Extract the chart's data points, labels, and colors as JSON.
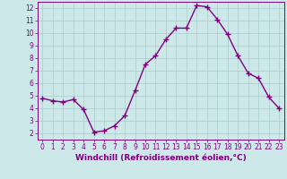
{
  "x": [
    0,
    1,
    2,
    3,
    4,
    5,
    6,
    7,
    8,
    9,
    10,
    11,
    12,
    13,
    14,
    15,
    16,
    17,
    18,
    19,
    20,
    21,
    22,
    23
  ],
  "y": [
    4.8,
    4.6,
    4.5,
    4.7,
    3.9,
    2.1,
    2.2,
    2.6,
    3.4,
    5.4,
    7.5,
    8.2,
    9.5,
    10.4,
    10.4,
    12.2,
    12.1,
    11.1,
    9.9,
    8.2,
    6.8,
    6.4,
    4.9,
    4.0
  ],
  "line_color": "#800080",
  "marker": "+",
  "marker_size": 4,
  "marker_lw": 1.0,
  "line_width": 1.0,
  "bg_color": "#cce8e8",
  "grid_color": "#aacccc",
  "xlabel": "Windchill (Refroidissement éolien,°C)",
  "xlim": [
    -0.5,
    23.5
  ],
  "ylim": [
    1.5,
    12.5
  ],
  "yticks": [
    2,
    3,
    4,
    5,
    6,
    7,
    8,
    9,
    10,
    11,
    12
  ],
  "xticks": [
    0,
    1,
    2,
    3,
    4,
    5,
    6,
    7,
    8,
    9,
    10,
    11,
    12,
    13,
    14,
    15,
    16,
    17,
    18,
    19,
    20,
    21,
    22,
    23
  ],
  "tick_fontsize": 5.5,
  "xlabel_fontsize": 6.5,
  "tick_color": "#800080",
  "spine_color": "#800080",
  "label_color": "#800080"
}
